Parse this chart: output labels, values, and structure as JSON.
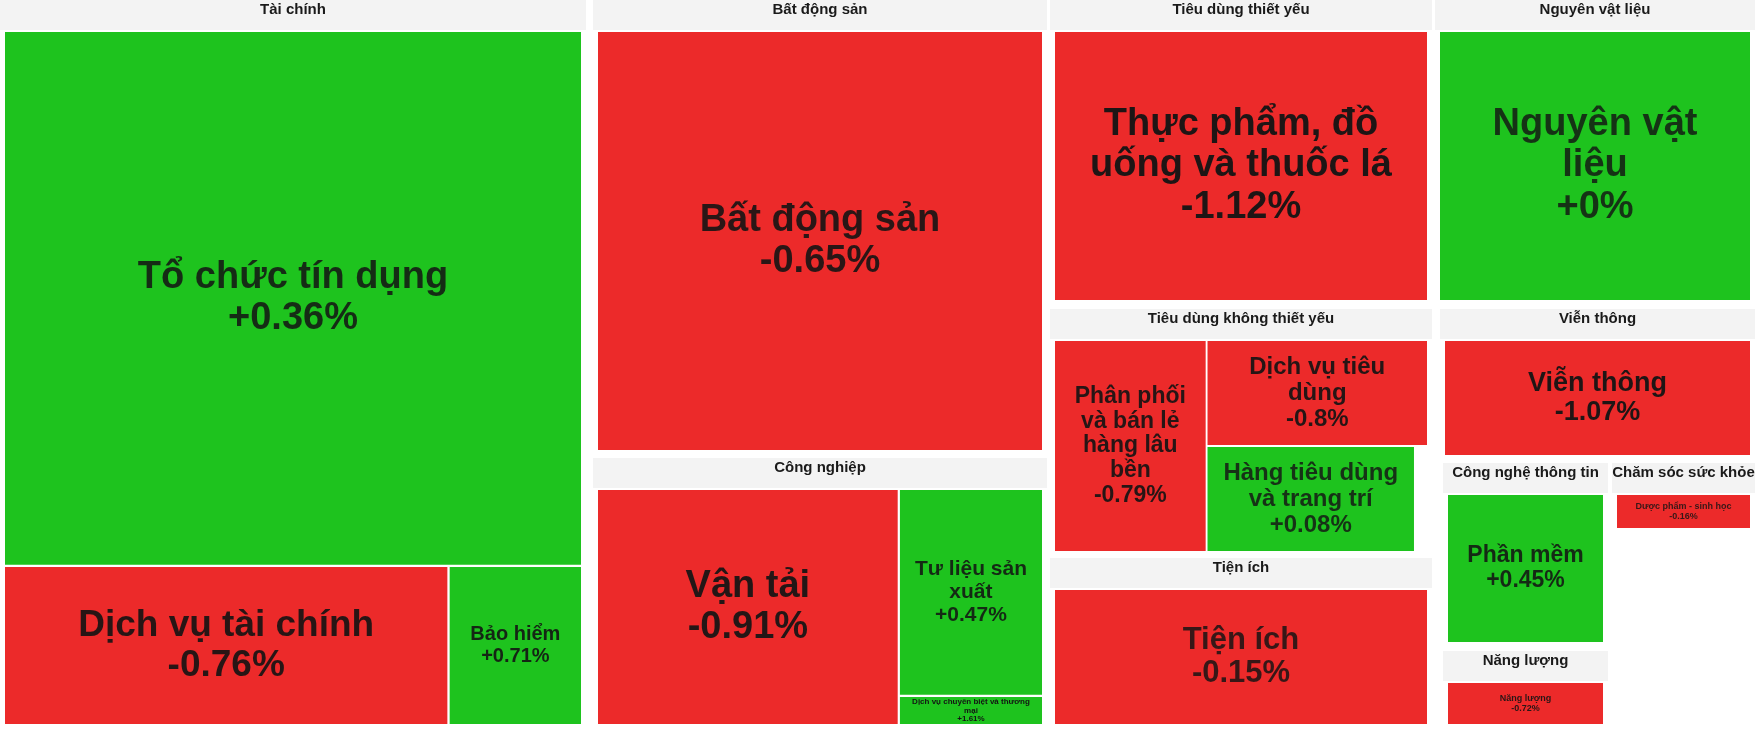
{
  "chart_data": [
    {
      "type": "other",
      "title": "Tài chính",
      "categories": [
        "Tổ chức tín dụng",
        "Dịch vụ tài chính",
        "Bảo hiểm"
      ],
      "values": [
        0.36,
        -0.76,
        0.71
      ],
      "value_labels": [
        "+0.36%",
        "-0.76%",
        "+0.71%"
      ],
      "colors": [
        "#1ec31e",
        "#ec2a2a",
        "#1ec31e"
      ]
    },
    {
      "type": "other",
      "title": "Bất động sản",
      "categories": [
        "Bất động sản"
      ],
      "values": [
        -0.65
      ],
      "value_labels": [
        "-0.65%"
      ],
      "colors": [
        "#ec2a2a"
      ]
    },
    {
      "type": "other",
      "title": "Tiêu dùng thiết yếu",
      "categories": [
        "Thực phẩm, đồ uống và thuốc lá"
      ],
      "values": [
        -1.12
      ],
      "value_labels": [
        "-1.12%"
      ],
      "colors": [
        "#ec2a2a"
      ]
    },
    {
      "type": "other",
      "title": "Nguyên vật liệu",
      "categories": [
        "Nguyên vật liệu"
      ],
      "values": [
        0
      ],
      "value_labels": [
        "+0%"
      ],
      "colors": [
        "#1ec31e"
      ]
    },
    {
      "type": "other",
      "title": "Tiêu dùng không thiết yếu",
      "categories": [
        "Phân phối và bán lẻ hàng lâu bền",
        "Dịch vụ tiêu dùng",
        "Hàng tiêu dùng và trang trí"
      ],
      "values": [
        -0.79,
        -0.8,
        0.08
      ],
      "value_labels": [
        "-0.79%",
        "-0.8%",
        "+0.08%"
      ],
      "colors": [
        "#ec2a2a",
        "#ec2a2a",
        "#1ec31e"
      ]
    },
    {
      "type": "other",
      "title": "Viễn thông",
      "categories": [
        "Viễn thông"
      ],
      "values": [
        -1.07
      ],
      "value_labels": [
        "-1.07%"
      ],
      "colors": [
        "#ec2a2a"
      ]
    },
    {
      "type": "other",
      "title": "Công nghiệp",
      "categories": [
        "Vận tải",
        "Tư liệu sản xuất",
        "Dịch vụ chuyên biệt và thương mại"
      ],
      "values": [
        -0.91,
        0.47,
        1.61
      ],
      "value_labels": [
        "-0.91%",
        "+0.47%",
        "+1.61%"
      ],
      "colors": [
        "#ec2a2a",
        "#1ec31e",
        "#1ec31e"
      ]
    },
    {
      "type": "other",
      "title": "Tiện ích",
      "categories": [
        "Tiện ích"
      ],
      "values": [
        -0.15
      ],
      "value_labels": [
        "-0.15%"
      ],
      "colors": [
        "#ec2a2a"
      ]
    },
    {
      "type": "other",
      "title": "Công nghệ thông tin",
      "categories": [
        "Phần mềm"
      ],
      "values": [
        0.45
      ],
      "value_labels": [
        "+0.45%"
      ],
      "colors": [
        "#1ec31e"
      ]
    },
    {
      "type": "other",
      "title": "Chăm sóc sức khỏe",
      "categories": [
        "Dược phẩm - sinh học"
      ],
      "values": [
        -0.16
      ],
      "value_labels": [
        "-0.16%"
      ],
      "colors": [
        "#ec2a2a"
      ]
    },
    {
      "type": "other",
      "title": "Năng lượng",
      "categories": [
        "Năng lượng"
      ],
      "values": [
        -0.72
      ],
      "value_labels": [
        "-0.72%"
      ],
      "colors": [
        "#ec2a2a"
      ]
    }
  ]
}
